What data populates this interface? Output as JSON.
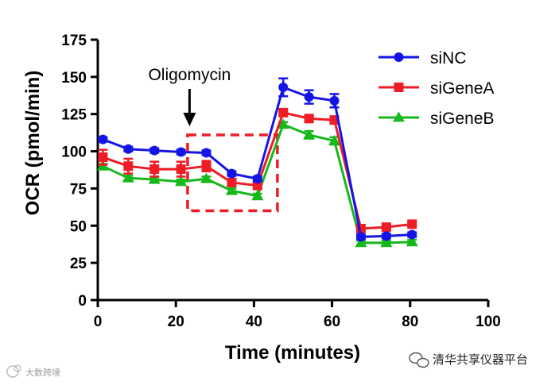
{
  "chart_data": {
    "type": "line",
    "title": "",
    "xlabel": "Time (minutes)",
    "ylabel": "OCR (pmol/min)",
    "xlim": [
      0,
      100
    ],
    "ylim": [
      0,
      175
    ],
    "xticks": [
      0,
      20,
      40,
      60,
      80,
      100
    ],
    "yticks": [
      0,
      25,
      50,
      75,
      100,
      125,
      150,
      175
    ],
    "grid": false,
    "legend_position": "top-right",
    "x": [
      1.3,
      7.8,
      14.5,
      21.3,
      27.8,
      34.3,
      40.9,
      47.5,
      54.1,
      60.6,
      67.4,
      73.9,
      80.5
    ],
    "series": [
      {
        "name": "siNC",
        "color": "#1414e6",
        "marker": "circle",
        "values": [
          108,
          101.5,
          100.5,
          99.5,
          99,
          85,
          81.5,
          143,
          136.5,
          134,
          42.5,
          43,
          44
        ],
        "errors": [
          1.5,
          1.5,
          1.5,
          1.5,
          1.5,
          1.5,
          1.5,
          6,
          4.5,
          4.5,
          1.5,
          1.5,
          1.5
        ]
      },
      {
        "name": "siGeneA",
        "color": "#ee1c24",
        "marker": "square",
        "values": [
          96,
          90,
          88,
          88,
          90,
          79,
          77,
          126,
          122,
          121,
          48,
          49,
          51
        ],
        "errors": [
          5,
          5,
          5,
          5,
          3.5,
          2,
          2,
          2,
          2,
          2,
          1.5,
          1.5,
          1.5
        ]
      },
      {
        "name": "siGeneB",
        "color": "#16b81c",
        "marker": "triangle",
        "values": [
          90,
          82,
          81,
          79.5,
          81.5,
          73.5,
          70,
          118,
          111,
          107,
          38.5,
          38.5,
          39
        ],
        "errors": [
          1.5,
          1.5,
          1.5,
          1.5,
          1.5,
          1.5,
          1.5,
          1.5,
          2.5,
          2.5,
          1.5,
          1.5,
          1.5
        ]
      }
    ],
    "annotations": [
      {
        "text": "Oligomycin",
        "arrow_at_x": 23.5
      }
    ],
    "highlight_box": {
      "x_range": [
        23,
        46
      ],
      "y_range": [
        60,
        111
      ],
      "style": "dashed",
      "color": "#ee1c24"
    }
  },
  "watermarks": {
    "right_text": "清华共享仪器平台",
    "left_text": "大数跨境"
  }
}
